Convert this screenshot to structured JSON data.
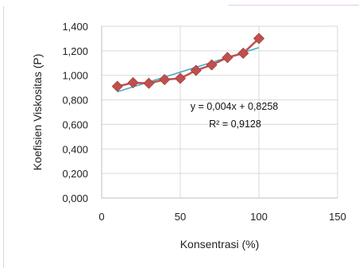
{
  "chart_data": {
    "type": "scatter",
    "title": "",
    "xlabel": "Konsentrasi (%)",
    "ylabel": "Koefisien Viskositas (P)",
    "xlim": [
      0,
      150
    ],
    "ylim": [
      0,
      1.4
    ],
    "x_ticks": [
      "0",
      "50",
      "100",
      "150"
    ],
    "y_ticks": [
      "0,000",
      "0,200",
      "0,400",
      "0,600",
      "0,800",
      "1,000",
      "1,200",
      "1,400"
    ],
    "grid": "vertical-and-horizontal-light",
    "legend": "none",
    "series": [
      {
        "marker": "diamond",
        "color": "#c0504d",
        "connected": true,
        "x": [
          10,
          20,
          30,
          40,
          50,
          60,
          70,
          80,
          90,
          100
        ],
        "y": [
          0.91,
          0.94,
          0.935,
          0.965,
          0.975,
          1.04,
          1.085,
          1.145,
          1.18,
          1.3
        ]
      }
    ],
    "trendline": {
      "type": "linear",
      "color": "#4bacc6",
      "slope": 0.004,
      "intercept": 0.8258,
      "x_range": [
        10,
        100
      ]
    },
    "annotations": [
      "y = 0,004x + 0,8258",
      "R² = 0,9128"
    ]
  }
}
